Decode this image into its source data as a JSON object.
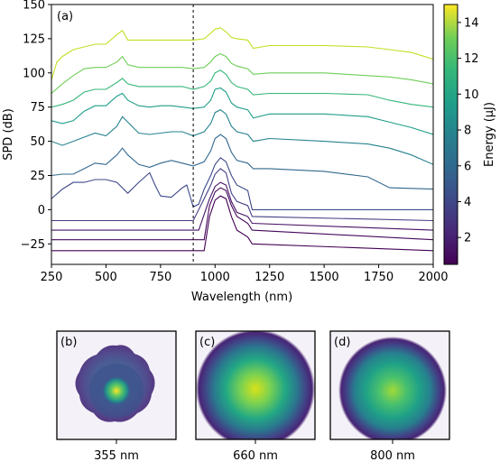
{
  "chart_data": [
    {
      "type": "line",
      "panel_label": "(a)",
      "xlabel": "Wavelength (nm)",
      "ylabel": "SPD (dB)",
      "xlim": [
        250,
        2000
      ],
      "ylim": [
        -40,
        150
      ],
      "x_ticks": [
        250,
        500,
        750,
        1000,
        1250,
        1500,
        1750,
        2000
      ],
      "y_ticks": [
        -25,
        0,
        25,
        50,
        75,
        100,
        125,
        150
      ],
      "grid": false,
      "vertical_marker_nm": 900,
      "colormap": "viridis",
      "colorbar": {
        "label": "Energy (μJ)",
        "range": [
          0.5,
          15
        ],
        "ticks": [
          2,
          4,
          6,
          8,
          10,
          12,
          14
        ]
      },
      "series": [
        {
          "energy_uJ": 0.7,
          "color": "#440154",
          "baseline_dB": -30,
          "points": [
            [
              250,
              -30
            ],
            [
              950,
              -30
            ],
            [
              975,
              -5
            ],
            [
              1000,
              7
            ],
            [
              1025,
              10
            ],
            [
              1050,
              8
            ],
            [
              1075,
              -5
            ],
            [
              1100,
              -15
            ],
            [
              1150,
              -20
            ],
            [
              1170,
              -25
            ],
            [
              2000,
              -30
            ]
          ]
        },
        {
          "energy_uJ": 1.5,
          "color": "#46085c",
          "baseline_dB": -22,
          "points": [
            [
              250,
              -22
            ],
            [
              950,
              -22
            ],
            [
              975,
              3
            ],
            [
              1000,
              13
            ],
            [
              1025,
              16
            ],
            [
              1050,
              14
            ],
            [
              1075,
              3
            ],
            [
              1100,
              -5
            ],
            [
              1150,
              -10
            ],
            [
              1170,
              -15
            ],
            [
              2000,
              -22
            ]
          ]
        },
        {
          "energy_uJ": 2.5,
          "color": "#471365",
          "baseline_dB": -15,
          "points": [
            [
              250,
              -15
            ],
            [
              925,
              -15
            ],
            [
              975,
              8
            ],
            [
              1000,
              17
            ],
            [
              1025,
              20
            ],
            [
              1050,
              18
            ],
            [
              1075,
              6
            ],
            [
              1100,
              -2
            ],
            [
              1150,
              -5
            ],
            [
              1170,
              -10
            ],
            [
              2000,
              -15
            ]
          ]
        },
        {
          "energy_uJ": 3.5,
          "color": "#433e85",
          "baseline_dB": -8,
          "points": [
            [
              250,
              -8
            ],
            [
              900,
              -8
            ],
            [
              950,
              8
            ],
            [
              980,
              18
            ],
            [
              1000,
              26
            ],
            [
              1025,
              30
            ],
            [
              1050,
              27
            ],
            [
              1075,
              12
            ],
            [
              1100,
              6
            ],
            [
              1150,
              3
            ],
            [
              1170,
              -5
            ],
            [
              2000,
              -8
            ]
          ]
        },
        {
          "energy_uJ": 4.5,
          "color": "#3e4989",
          "baseline_dB": 0,
          "points": [
            [
              250,
              8
            ],
            [
              300,
              15
            ],
            [
              350,
              20
            ],
            [
              400,
              20
            ],
            [
              450,
              22
            ],
            [
              500,
              22
            ],
            [
              550,
              20
            ],
            [
              600,
              12
            ],
            [
              650,
              20
            ],
            [
              700,
              27
            ],
            [
              725,
              18
            ],
            [
              750,
              10
            ],
            [
              800,
              9
            ],
            [
              850,
              16
            ],
            [
              870,
              18
            ],
            [
              900,
              2
            ],
            [
              925,
              4
            ],
            [
              950,
              15
            ],
            [
              980,
              25
            ],
            [
              1000,
              33
            ],
            [
              1025,
              38
            ],
            [
              1050,
              35
            ],
            [
              1075,
              25
            ],
            [
              1100,
              18
            ],
            [
              1150,
              14
            ],
            [
              1170,
              0
            ],
            [
              1250,
              0
            ],
            [
              2000,
              0
            ]
          ]
        },
        {
          "energy_uJ": 6,
          "color": "#31688e",
          "baseline_dB": 10,
          "points": [
            [
              250,
              25
            ],
            [
              300,
              26
            ],
            [
              350,
              26
            ],
            [
              400,
              30
            ],
            [
              450,
              34
            ],
            [
              500,
              33
            ],
            [
              550,
              40
            ],
            [
              575,
              45
            ],
            [
              600,
              40
            ],
            [
              650,
              33
            ],
            [
              700,
              31
            ],
            [
              750,
              34
            ],
            [
              800,
              36
            ],
            [
              850,
              34
            ],
            [
              900,
              32
            ],
            [
              950,
              35
            ],
            [
              980,
              43
            ],
            [
              1000,
              52
            ],
            [
              1025,
              55
            ],
            [
              1050,
              52
            ],
            [
              1075,
              42
            ],
            [
              1100,
              36
            ],
            [
              1150,
              34
            ],
            [
              1175,
              30
            ],
            [
              1250,
              30
            ],
            [
              1500,
              28
            ],
            [
              1700,
              24
            ],
            [
              1800,
              16
            ],
            [
              2000,
              15
            ]
          ]
        },
        {
          "energy_uJ": 7.5,
          "color": "#26828e",
          "baseline_dB": 40,
          "points": [
            [
              250,
              50
            ],
            [
              300,
              47
            ],
            [
              350,
              50
            ],
            [
              400,
              53
            ],
            [
              450,
              56
            ],
            [
              500,
              54
            ],
            [
              550,
              61
            ],
            [
              575,
              68
            ],
            [
              600,
              64
            ],
            [
              650,
              56
            ],
            [
              700,
              55
            ],
            [
              750,
              56
            ],
            [
              800,
              57
            ],
            [
              850,
              57
            ],
            [
              900,
              54
            ],
            [
              950,
              57
            ],
            [
              980,
              63
            ],
            [
              1000,
              71
            ],
            [
              1025,
              73
            ],
            [
              1050,
              70
            ],
            [
              1075,
              61
            ],
            [
              1100,
              57
            ],
            [
              1150,
              55
            ],
            [
              1175,
              50
            ],
            [
              1250,
              52
            ],
            [
              1500,
              50
            ],
            [
              1700,
              48
            ],
            [
              1800,
              45
            ],
            [
              1900,
              40
            ],
            [
              2000,
              33
            ]
          ]
        },
        {
          "energy_uJ": 9,
          "color": "#1f9e89",
          "baseline_dB": 70,
          "points": [
            [
              250,
              65
            ],
            [
              300,
              63
            ],
            [
              350,
              65
            ],
            [
              400,
              72
            ],
            [
              450,
              76
            ],
            [
              500,
              76
            ],
            [
              550,
              83
            ],
            [
              575,
              85
            ],
            [
              600,
              80
            ],
            [
              650,
              76
            ],
            [
              700,
              75
            ],
            [
              750,
              76
            ],
            [
              800,
              76
            ],
            [
              850,
              75
            ],
            [
              900,
              74
            ],
            [
              950,
              75
            ],
            [
              980,
              80
            ],
            [
              1000,
              88
            ],
            [
              1025,
              89
            ],
            [
              1050,
              86
            ],
            [
              1075,
              78
            ],
            [
              1100,
              75
            ],
            [
              1150,
              73
            ],
            [
              1175,
              67
            ],
            [
              1250,
              70
            ],
            [
              1500,
              70
            ],
            [
              1700,
              68
            ],
            [
              1800,
              64
            ],
            [
              1900,
              60
            ],
            [
              2000,
              55
            ]
          ]
        },
        {
          "energy_uJ": 10.5,
          "color": "#35b779",
          "baseline_dB": 80,
          "points": [
            [
              250,
              75
            ],
            [
              300,
              77
            ],
            [
              350,
              80
            ],
            [
              400,
              86
            ],
            [
              450,
              88
            ],
            [
              500,
              88
            ],
            [
              550,
              93
            ],
            [
              575,
              96
            ],
            [
              600,
              92
            ],
            [
              650,
              90
            ],
            [
              700,
              90
            ],
            [
              750,
              90
            ],
            [
              800,
              90
            ],
            [
              850,
              90
            ],
            [
              900,
              88
            ],
            [
              950,
              90
            ],
            [
              980,
              94
            ],
            [
              1000,
              100
            ],
            [
              1025,
              102
            ],
            [
              1050,
              99
            ],
            [
              1075,
              93
            ],
            [
              1100,
              90
            ],
            [
              1150,
              88
            ],
            [
              1175,
              84
            ],
            [
              1250,
              85
            ],
            [
              1500,
              85
            ],
            [
              1700,
              84
            ],
            [
              1800,
              80
            ],
            [
              1900,
              77
            ],
            [
              2000,
              75
            ]
          ]
        },
        {
          "energy_uJ": 12,
          "color": "#6ece58",
          "baseline_dB": 95,
          "points": [
            [
              250,
              85
            ],
            [
              300,
              92
            ],
            [
              350,
              98
            ],
            [
              400,
              103
            ],
            [
              450,
              104
            ],
            [
              500,
              104
            ],
            [
              550,
              108
            ],
            [
              575,
              112
            ],
            [
              600,
              106
            ],
            [
              650,
              104
            ],
            [
              700,
              104
            ],
            [
              750,
              104
            ],
            [
              800,
              104
            ],
            [
              850,
              104
            ],
            [
              900,
              103
            ],
            [
              950,
              104
            ],
            [
              980,
              108
            ],
            [
              1000,
              112
            ],
            [
              1025,
              114
            ],
            [
              1050,
              112
            ],
            [
              1075,
              107
            ],
            [
              1100,
              105
            ],
            [
              1150,
              103
            ],
            [
              1175,
              99
            ],
            [
              1250,
              100
            ],
            [
              1500,
              100
            ],
            [
              1700,
              98
            ],
            [
              1800,
              97
            ],
            [
              1900,
              95
            ],
            [
              2000,
              92
            ]
          ]
        },
        {
          "energy_uJ": 14,
          "color": "#c2df23",
          "baseline_dB": 110,
          "points": [
            [
              250,
              95
            ],
            [
              275,
              108
            ],
            [
              300,
              112
            ],
            [
              350,
              117
            ],
            [
              400,
              119
            ],
            [
              450,
              121
            ],
            [
              500,
              121
            ],
            [
              550,
              128
            ],
            [
              575,
              131
            ],
            [
              600,
              124
            ],
            [
              650,
              124
            ],
            [
              700,
              124
            ],
            [
              750,
              124
            ],
            [
              800,
              124
            ],
            [
              850,
              124
            ],
            [
              900,
              124
            ],
            [
              950,
              125
            ],
            [
              980,
              129
            ],
            [
              1000,
              132
            ],
            [
              1025,
              133
            ],
            [
              1050,
              130
            ],
            [
              1075,
              126
            ],
            [
              1100,
              125
            ],
            [
              1150,
              124
            ],
            [
              1175,
              118
            ],
            [
              1250,
              120
            ],
            [
              1500,
              120
            ],
            [
              1700,
              119
            ],
            [
              1800,
              117
            ],
            [
              1900,
              115
            ],
            [
              2000,
              110
            ]
          ]
        }
      ]
    },
    {
      "type": "heatmap",
      "panel_label": "(b)",
      "caption": "355 nm",
      "beam_shape": "hexagonal ring with bright central spot",
      "colormap": "viridis"
    },
    {
      "type": "heatmap",
      "panel_label": "(c)",
      "caption": "660 nm",
      "beam_shape": "large round spot",
      "colormap": "viridis"
    },
    {
      "type": "heatmap",
      "panel_label": "(d)",
      "caption": "800 nm",
      "beam_shape": "round spot",
      "colormap": "viridis"
    }
  ]
}
